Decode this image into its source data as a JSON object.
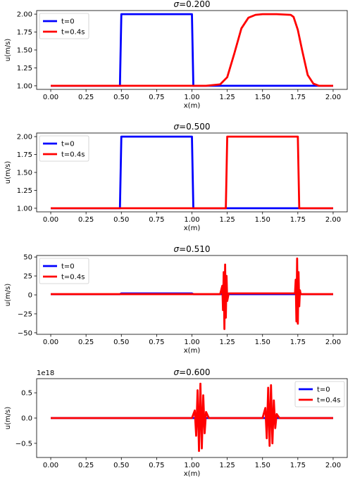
{
  "chart_data": [
    {
      "type": "line",
      "title_symbol": "σ",
      "title_value": "=0.200",
      "xlabel": "x(m)",
      "ylabel": "u(m/s)",
      "xlim": [
        -0.1,
        2.1
      ],
      "ylim": [
        0.95,
        2.05
      ],
      "xticks": [
        0.0,
        0.25,
        0.5,
        0.75,
        1.0,
        1.25,
        1.5,
        1.75,
        2.0
      ],
      "xtick_labels": [
        "0.00",
        "0.25",
        "0.50",
        "0.75",
        "1.00",
        "1.25",
        "1.50",
        "1.75",
        "2.00"
      ],
      "yticks": [
        1.0,
        1.25,
        1.5,
        1.75,
        2.0
      ],
      "ytick_labels": [
        "1.00",
        "1.25",
        "1.50",
        "1.75",
        "2.00"
      ],
      "multiplier_label": "",
      "legend_loc": "upper-left",
      "series": [
        {
          "name": "t=0",
          "color": "#0000ff",
          "x": [
            0,
            0.49,
            0.5,
            1.0,
            1.01,
            2.0
          ],
          "y": [
            1,
            1,
            2,
            2,
            1,
            1
          ]
        },
        {
          "name": "t=0.4s",
          "color": "#ff0000",
          "x": [
            0,
            1.1,
            1.2,
            1.25,
            1.3,
            1.35,
            1.4,
            1.45,
            1.5,
            1.6,
            1.7,
            1.72,
            1.75,
            1.78,
            1.82,
            1.86,
            1.9,
            2.0
          ],
          "y": [
            1,
            1,
            1.02,
            1.12,
            1.45,
            1.8,
            1.95,
            1.99,
            2.0,
            2.0,
            1.99,
            1.96,
            1.78,
            1.5,
            1.15,
            1.03,
            1.0,
            1.0
          ]
        }
      ]
    },
    {
      "type": "line",
      "title_symbol": "σ",
      "title_value": "=0.500",
      "xlabel": "x(m)",
      "ylabel": "u(m/s)",
      "xlim": [
        -0.1,
        2.1
      ],
      "ylim": [
        0.95,
        2.05
      ],
      "xticks": [
        0.0,
        0.25,
        0.5,
        0.75,
        1.0,
        1.25,
        1.5,
        1.75,
        2.0
      ],
      "xtick_labels": [
        "0.00",
        "0.25",
        "0.50",
        "0.75",
        "1.00",
        "1.25",
        "1.50",
        "1.75",
        "2.00"
      ],
      "yticks": [
        1.0,
        1.25,
        1.5,
        1.75,
        2.0
      ],
      "ytick_labels": [
        "1.00",
        "1.25",
        "1.50",
        "1.75",
        "2.00"
      ],
      "multiplier_label": "",
      "legend_loc": "upper-left",
      "series": [
        {
          "name": "t=0",
          "color": "#0000ff",
          "x": [
            0,
            0.49,
            0.5,
            1.0,
            1.01,
            2.0
          ],
          "y": [
            1,
            1,
            2,
            2,
            1,
            1
          ]
        },
        {
          "name": "t=0.4s",
          "color": "#ff0000",
          "x": [
            0,
            1.24,
            1.25,
            1.75,
            1.76,
            2.0
          ],
          "y": [
            1,
            1,
            2,
            2,
            1,
            1
          ]
        }
      ]
    },
    {
      "type": "line",
      "title_symbol": "σ",
      "title_value": "=0.510",
      "xlabel": "x(m)",
      "ylabel": "u(m/s)",
      "xlim": [
        -0.1,
        2.1
      ],
      "ylim": [
        -52,
        52
      ],
      "xticks": [
        0.0,
        0.25,
        0.5,
        0.75,
        1.0,
        1.25,
        1.5,
        1.75,
        2.0
      ],
      "xtick_labels": [
        "0.00",
        "0.25",
        "0.50",
        "0.75",
        "1.00",
        "1.25",
        "1.50",
        "1.75",
        "2.00"
      ],
      "yticks": [
        -50,
        -25,
        0,
        25,
        50
      ],
      "ytick_labels": [
        "−50",
        "−25",
        "0",
        "25",
        "50"
      ],
      "multiplier_label": "",
      "legend_loc": "upper-left",
      "series": [
        {
          "name": "t=0",
          "color": "#0000ff",
          "x": [
            0,
            0.49,
            0.5,
            1.0,
            1.01,
            2.0
          ],
          "y": [
            1,
            1,
            2,
            2,
            1,
            1
          ]
        },
        {
          "name": "t=0.4s",
          "color": "#ff0000",
          "x": [
            0,
            1.2,
            1.215,
            1.22,
            1.225,
            1.23,
            1.235,
            1.24,
            1.245,
            1.25,
            1.26,
            1.27,
            1.73,
            1.735,
            1.74,
            1.745,
            1.75,
            1.755,
            1.76,
            1.765,
            1.77,
            2.0
          ],
          "y": [
            1,
            1,
            12,
            -20,
            30,
            -45,
            40,
            -30,
            25,
            -8,
            2,
            2,
            2,
            20,
            -35,
            48,
            -38,
            30,
            -15,
            6,
            1,
            1
          ]
        }
      ]
    },
    {
      "type": "line",
      "title_symbol": "σ",
      "title_value": "=0.600",
      "xlabel": "x(m)",
      "ylabel": "u(m/s)",
      "xlim": [
        -0.1,
        2.1
      ],
      "ylim": [
        -0.78,
        0.78
      ],
      "xticks": [
        0.0,
        0.25,
        0.5,
        0.75,
        1.0,
        1.25,
        1.5,
        1.75,
        2.0
      ],
      "xtick_labels": [
        "0.00",
        "0.25",
        "0.50",
        "0.75",
        "1.00",
        "1.25",
        "1.50",
        "1.75",
        "2.00"
      ],
      "yticks": [
        -0.5,
        0.0,
        0.5
      ],
      "ytick_labels": [
        "−0.5",
        "0.0",
        "0.5"
      ],
      "multiplier_label": "1e18",
      "legend_loc": "upper-right",
      "series": [
        {
          "name": "t=0",
          "color": "#0000ff",
          "x": [
            0,
            2.0
          ],
          "y": [
            0,
            0
          ]
        },
        {
          "name": "t=0.4s",
          "color": "#ff0000",
          "x": [
            0,
            1.0,
            1.02,
            1.03,
            1.04,
            1.05,
            1.06,
            1.07,
            1.08,
            1.09,
            1.1,
            1.12,
            1.5,
            1.52,
            1.53,
            1.54,
            1.55,
            1.56,
            1.57,
            1.58,
            1.59,
            1.6,
            1.62,
            2.0
          ],
          "y": [
            0,
            0,
            0.15,
            -0.35,
            0.55,
            -0.65,
            0.68,
            -0.6,
            0.45,
            -0.3,
            0.12,
            0,
            0,
            0.2,
            -0.4,
            0.6,
            -0.55,
            0.65,
            -0.5,
            0.35,
            -0.2,
            0.08,
            0,
            0
          ]
        }
      ]
    }
  ]
}
